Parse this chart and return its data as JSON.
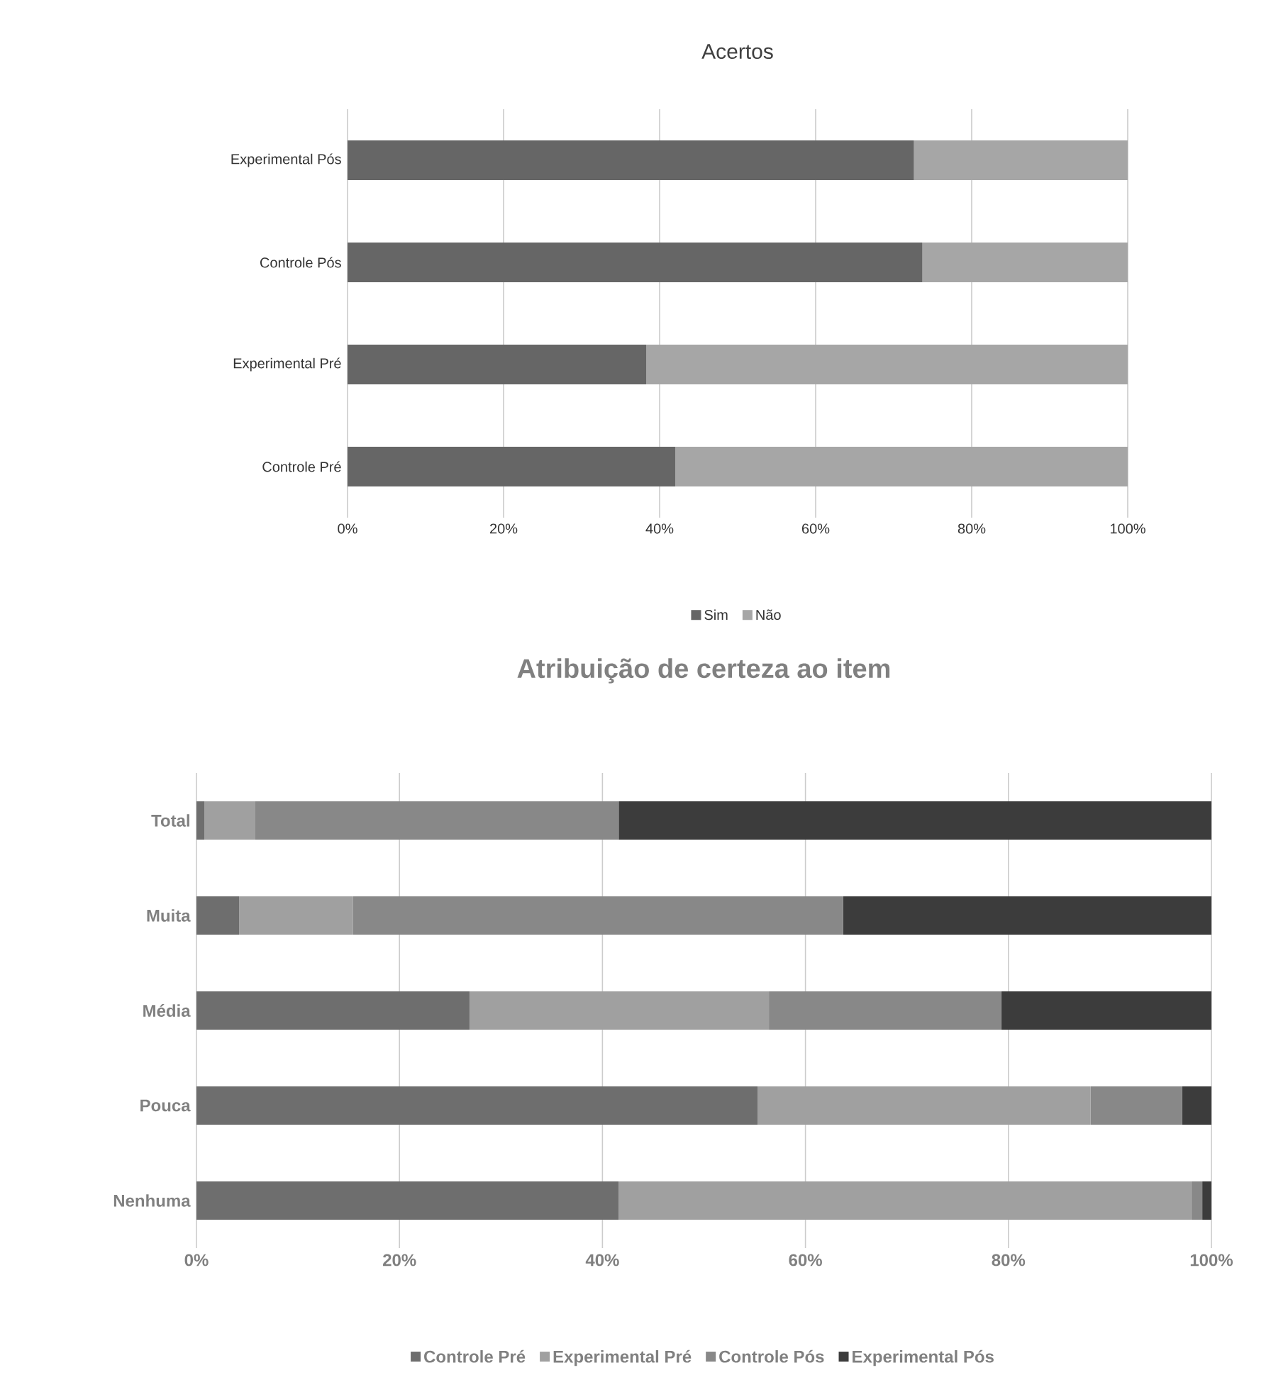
{
  "chart_data": [
    {
      "type": "bar",
      "title": "Acertos",
      "orientation": "horizontal",
      "stacked": true,
      "grid": "x",
      "legend": "bottom",
      "categories": [
        "Experimental Pós",
        "Controle Pós",
        "Experimental Pré",
        "Controle Pré"
      ],
      "series": [
        {
          "name": "Sim",
          "color": "#666666",
          "values": [
            72.6,
            73.7,
            38.3,
            42.0
          ]
        },
        {
          "name": "Não",
          "color": "#a6a6a6",
          "values": [
            27.4,
            26.3,
            61.7,
            58.0
          ]
        }
      ],
      "xlim": [
        0,
        100
      ],
      "xticks": [
        {
          "value": 0,
          "label": "0%"
        },
        {
          "value": 20,
          "label": "20%"
        },
        {
          "value": 40,
          "label": "40%"
        },
        {
          "value": 60,
          "label": "60%"
        },
        {
          "value": 80,
          "label": "80%"
        },
        {
          "value": 100,
          "label": "100%"
        }
      ]
    },
    {
      "type": "bar",
      "title": "Atribuição de certeza ao item",
      "orientation": "horizontal",
      "stacked": true,
      "grid": "x",
      "legend": "bottom",
      "categories": [
        "Total",
        "Muita",
        "Média",
        "Pouca",
        "Nenhuma"
      ],
      "series": [
        {
          "name": "Controle Pré",
          "color": "#6e6e6e",
          "values": [
            0.8,
            4.2,
            26.9,
            55.3,
            41.6
          ]
        },
        {
          "name": "Experimental Pré",
          "color": "#a0a0a0",
          "values": [
            5.0,
            11.2,
            29.5,
            32.8,
            56.4
          ]
        },
        {
          "name": "Controle Pós",
          "color": "#888888",
          "values": [
            35.8,
            48.3,
            22.9,
            9.0,
            1.1
          ]
        },
        {
          "name": "Experimental Pós",
          "color": "#3c3c3c",
          "values": [
            58.4,
            36.3,
            20.7,
            2.9,
            0.9
          ]
        }
      ],
      "xlim": [
        0,
        100
      ],
      "xticks": [
        {
          "value": 0,
          "label": "0%"
        },
        {
          "value": 20,
          "label": "20%"
        },
        {
          "value": 40,
          "label": "40%"
        },
        {
          "value": 60,
          "label": "60%"
        },
        {
          "value": 80,
          "label": "80%"
        },
        {
          "value": 100,
          "label": "100%"
        }
      ]
    }
  ]
}
